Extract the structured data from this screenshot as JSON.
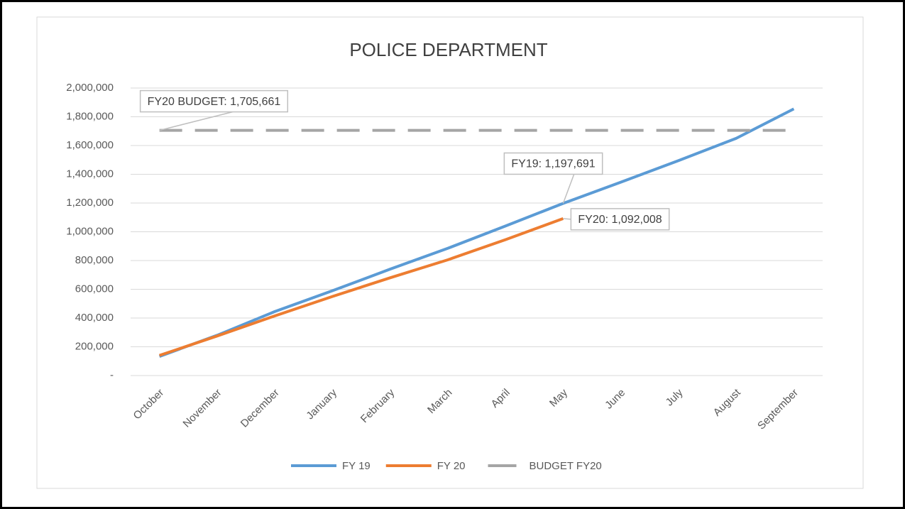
{
  "chart_data": {
    "type": "line",
    "title": "POLICE DEPARTMENT",
    "categories": [
      "October",
      "November",
      "December",
      "January",
      "February",
      "March",
      "April",
      "May",
      "June",
      "July",
      "August",
      "September"
    ],
    "series": [
      {
        "name": "FY 19",
        "color": "#5b9bd5",
        "values": [
          133000,
          280000,
          445000,
          590000,
          740000,
          885000,
          1040000,
          1197691,
          1345000,
          1495000,
          1650000,
          1855000
        ],
        "value_labels": [
          null,
          null,
          null,
          null,
          null,
          null,
          null,
          "FY19: 1,197,691",
          null,
          null,
          null,
          null
        ]
      },
      {
        "name": "FY 20",
        "color": "#ed7d31",
        "values": [
          140000,
          275000,
          415000,
          550000,
          680000,
          805000,
          945000,
          1092008,
          null,
          null,
          null,
          null
        ],
        "value_labels": [
          null,
          null,
          null,
          null,
          null,
          null,
          null,
          "FY20: 1,092,008",
          null,
          null,
          null,
          null
        ]
      },
      {
        "name": "BUDGET FY20",
        "color": "#a5a5a5",
        "dashed": true,
        "values": [
          1705661,
          1705661,
          1705661,
          1705661,
          1705661,
          1705661,
          1705661,
          1705661,
          1705661,
          1705661,
          1705661,
          1705661
        ],
        "value_labels": [
          "FY20 BUDGET:  1,705,661",
          null,
          null,
          null,
          null,
          null,
          null,
          null,
          null,
          null,
          null,
          null
        ]
      }
    ],
    "ylim": [
      0,
      2000000
    ],
    "yticks": [
      {
        "value": 0,
        "label": "-"
      },
      {
        "value": 200000,
        "label": "200,000"
      },
      {
        "value": 400000,
        "label": "400,000"
      },
      {
        "value": 600000,
        "label": "600,000"
      },
      {
        "value": 800000,
        "label": "800,000"
      },
      {
        "value": 1000000,
        "label": "1,000,000"
      },
      {
        "value": 1200000,
        "label": "1,200,000"
      },
      {
        "value": 1400000,
        "label": "1,400,000"
      },
      {
        "value": 1600000,
        "label": "1,600,000"
      },
      {
        "value": 1800000,
        "label": "1,800,000"
      },
      {
        "value": 2000000,
        "label": "2,000,000"
      }
    ],
    "grid": true,
    "legend": "bottom"
  }
}
